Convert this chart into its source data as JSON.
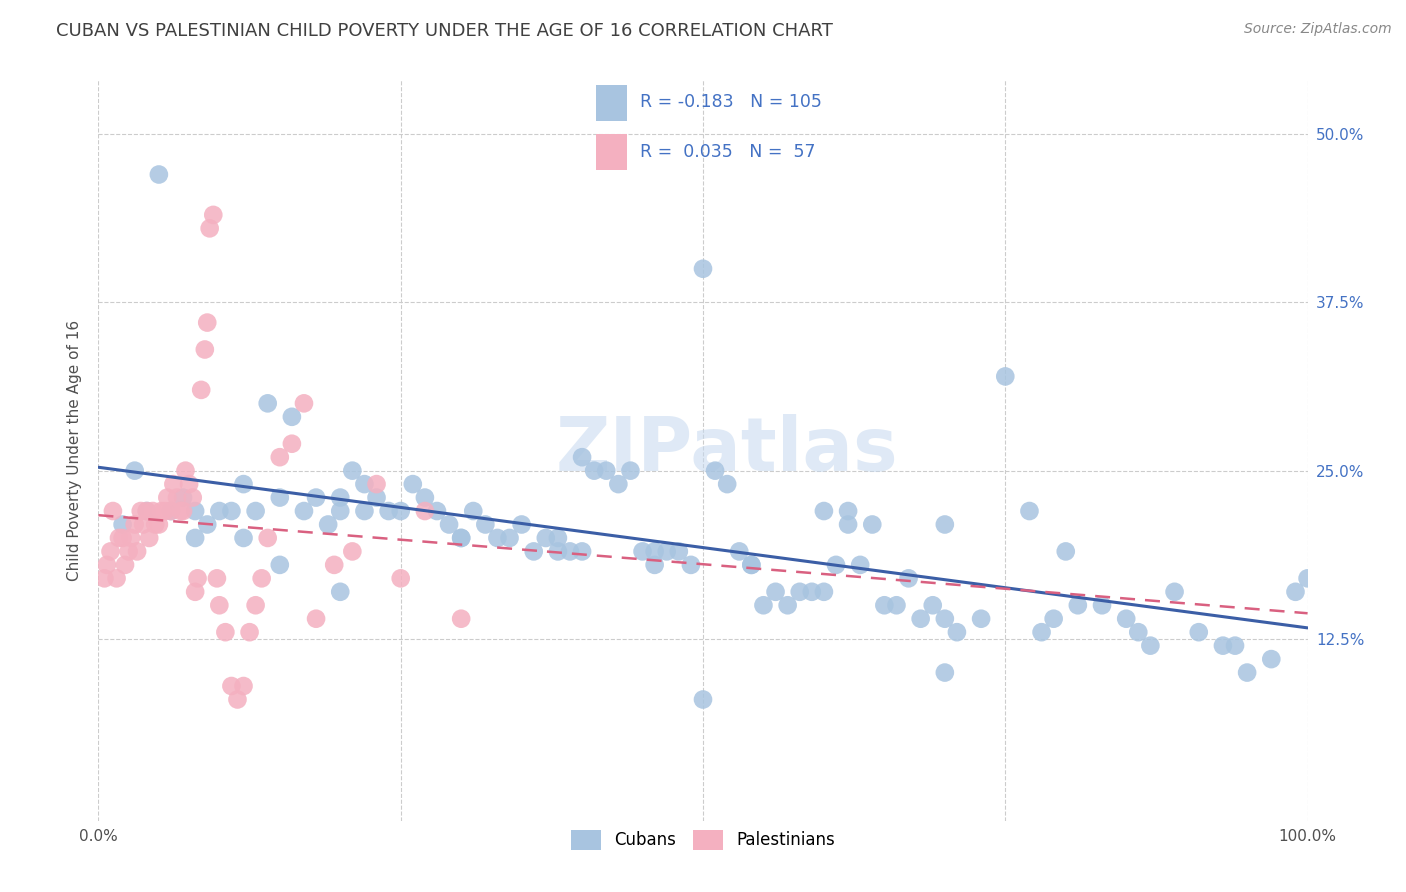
{
  "title": "CUBAN VS PALESTINIAN CHILD POVERTY UNDER THE AGE OF 16 CORRELATION CHART",
  "source": "Source: ZipAtlas.com",
  "ylabel": "Child Poverty Under the Age of 16",
  "watermark": "ZIPatlas",
  "xlim": [
    0.0,
    1.0
  ],
  "ylim": [
    -0.01,
    0.54
  ],
  "ytick_labels": [
    "12.5%",
    "25.0%",
    "37.5%",
    "50.0%"
  ],
  "yticks": [
    0.125,
    0.25,
    0.375,
    0.5
  ],
  "legend_r_cuban": "-0.183",
  "legend_n_cuban": "105",
  "legend_r_pales": "0.035",
  "legend_n_pales": "57",
  "cuban_color": "#a8c4e0",
  "cuban_line_color": "#3b5ea6",
  "pales_color": "#f4b0c0",
  "pales_line_color": "#d96080",
  "background_color": "#ffffff",
  "grid_color": "#cccccc",
  "title_color": "#404040",
  "source_color": "#888888",
  "cuban_scatter_x": [
    0.02,
    0.03,
    0.04,
    0.05,
    0.06,
    0.07,
    0.08,
    0.09,
    0.1,
    0.11,
    0.12,
    0.12,
    0.13,
    0.14,
    0.15,
    0.16,
    0.17,
    0.18,
    0.19,
    0.2,
    0.2,
    0.21,
    0.22,
    0.23,
    0.24,
    0.25,
    0.26,
    0.27,
    0.28,
    0.29,
    0.3,
    0.31,
    0.32,
    0.33,
    0.34,
    0.35,
    0.36,
    0.37,
    0.38,
    0.39,
    0.4,
    0.41,
    0.42,
    0.43,
    0.44,
    0.45,
    0.46,
    0.47,
    0.48,
    0.49,
    0.5,
    0.51,
    0.52,
    0.53,
    0.54,
    0.55,
    0.56,
    0.57,
    0.58,
    0.59,
    0.6,
    0.61,
    0.62,
    0.63,
    0.64,
    0.65,
    0.66,
    0.67,
    0.68,
    0.69,
    0.7,
    0.71,
    0.73,
    0.75,
    0.77,
    0.79,
    0.81,
    0.83,
    0.85,
    0.87,
    0.89,
    0.91,
    0.93,
    0.95,
    0.97,
    0.99,
    0.08,
    0.15,
    0.22,
    0.3,
    0.38,
    0.46,
    0.54,
    0.62,
    0.7,
    0.78,
    0.86,
    0.94,
    0.2,
    0.4,
    0.6,
    0.8,
    1.0,
    0.5,
    0.7
  ],
  "cuban_scatter_y": [
    0.21,
    0.25,
    0.22,
    0.47,
    0.22,
    0.23,
    0.22,
    0.21,
    0.22,
    0.22,
    0.24,
    0.2,
    0.22,
    0.3,
    0.23,
    0.29,
    0.22,
    0.23,
    0.21,
    0.23,
    0.22,
    0.25,
    0.24,
    0.23,
    0.22,
    0.22,
    0.24,
    0.23,
    0.22,
    0.21,
    0.2,
    0.22,
    0.21,
    0.2,
    0.2,
    0.21,
    0.19,
    0.2,
    0.2,
    0.19,
    0.26,
    0.25,
    0.25,
    0.24,
    0.25,
    0.19,
    0.18,
    0.19,
    0.19,
    0.18,
    0.4,
    0.25,
    0.24,
    0.19,
    0.18,
    0.15,
    0.16,
    0.15,
    0.16,
    0.16,
    0.22,
    0.18,
    0.21,
    0.18,
    0.21,
    0.15,
    0.15,
    0.17,
    0.14,
    0.15,
    0.21,
    0.13,
    0.14,
    0.32,
    0.22,
    0.14,
    0.15,
    0.15,
    0.14,
    0.12,
    0.16,
    0.13,
    0.12,
    0.1,
    0.11,
    0.16,
    0.2,
    0.18,
    0.22,
    0.2,
    0.19,
    0.19,
    0.18,
    0.22,
    0.14,
    0.13,
    0.13,
    0.12,
    0.16,
    0.19,
    0.16,
    0.19,
    0.17,
    0.08,
    0.1
  ],
  "pales_scatter_x": [
    0.005,
    0.007,
    0.01,
    0.012,
    0.015,
    0.017,
    0.02,
    0.022,
    0.025,
    0.027,
    0.03,
    0.032,
    0.035,
    0.037,
    0.04,
    0.042,
    0.045,
    0.047,
    0.05,
    0.052,
    0.055,
    0.057,
    0.06,
    0.062,
    0.065,
    0.068,
    0.07,
    0.072,
    0.075,
    0.078,
    0.08,
    0.082,
    0.085,
    0.088,
    0.09,
    0.092,
    0.095,
    0.098,
    0.1,
    0.105,
    0.11,
    0.115,
    0.12,
    0.125,
    0.13,
    0.135,
    0.14,
    0.15,
    0.16,
    0.17,
    0.18,
    0.195,
    0.21,
    0.23,
    0.25,
    0.27,
    0.3
  ],
  "pales_scatter_y": [
    0.17,
    0.18,
    0.19,
    0.22,
    0.17,
    0.2,
    0.2,
    0.18,
    0.19,
    0.2,
    0.21,
    0.19,
    0.22,
    0.21,
    0.22,
    0.2,
    0.22,
    0.21,
    0.21,
    0.22,
    0.22,
    0.23,
    0.22,
    0.24,
    0.23,
    0.22,
    0.22,
    0.25,
    0.24,
    0.23,
    0.16,
    0.17,
    0.31,
    0.34,
    0.36,
    0.43,
    0.44,
    0.17,
    0.15,
    0.13,
    0.09,
    0.08,
    0.09,
    0.13,
    0.15,
    0.17,
    0.2,
    0.26,
    0.27,
    0.3,
    0.14,
    0.18,
    0.19,
    0.24,
    0.17,
    0.22,
    0.14
  ]
}
